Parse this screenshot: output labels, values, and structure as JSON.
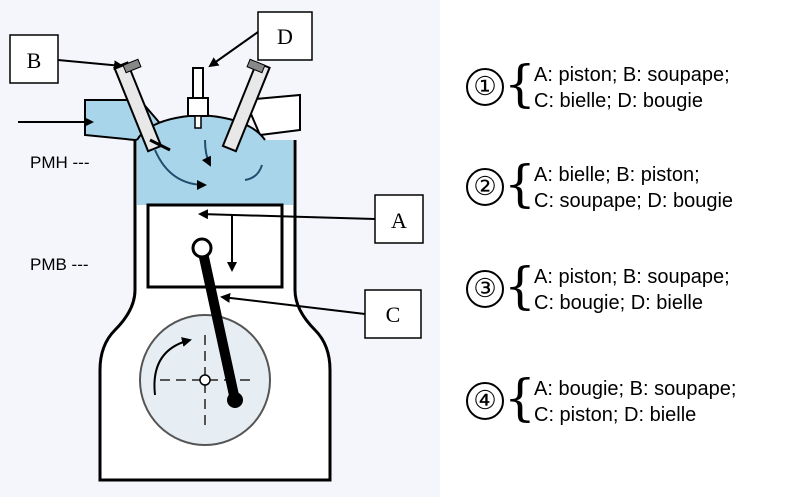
{
  "diagram": {
    "labels": {
      "A": "A",
      "B": "B",
      "C": "C",
      "D": "D",
      "pmh": "PMH ---",
      "pmb": "PMB ---"
    },
    "colors": {
      "fluid": "#a9d5ea",
      "engine_fill": "#ffffff",
      "background": "#f4f6fb",
      "stroke": "#000000"
    }
  },
  "options": [
    {
      "number": "①",
      "line1": "A: piston; B: soupape;",
      "line2": "C: bielle; D: bougie"
    },
    {
      "number": "②",
      "line1": "A: bielle; B: piston;",
      "line2": "C: soupape; D: bougie"
    },
    {
      "number": "③",
      "line1": "A: piston; B: soupape;",
      "line2": "C: bougie; D: bielle"
    },
    {
      "number": "④",
      "line1": "A: bougie; B: soupape;",
      "line2": "C: piston; D: bielle"
    }
  ]
}
